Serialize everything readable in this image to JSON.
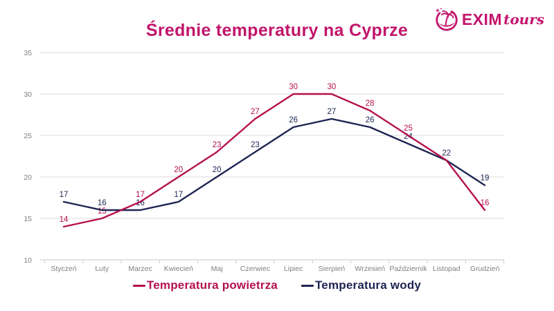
{
  "logo": {
    "brand": "EXIM",
    "suffix": "tours",
    "color": "#C4156D",
    "icon": "palm-island-icon"
  },
  "chart_data": {
    "type": "line",
    "title": "Średnie temperatury na Cyprze",
    "title_color": "#C2156B",
    "categories": [
      "Styczeń",
      "Luty",
      "Marzec",
      "Kwiecień",
      "Maj",
      "Czerwiec",
      "Lipiec",
      "Sierpień",
      "Wrzesień",
      "Październik",
      "Listopad",
      "Grudzień"
    ],
    "series": [
      {
        "name": "Temperatura powietrza",
        "color": "#B5104E",
        "values": [
          14,
          15,
          17,
          20,
          23,
          27,
          30,
          30,
          28,
          25,
          22,
          16
        ],
        "point_labels": [
          "14",
          "15",
          "17",
          "20",
          "23",
          "27",
          "30",
          "30",
          "28",
          "25",
          "",
          "16"
        ]
      },
      {
        "name": "Temperatura wody",
        "color": "#1D2452",
        "values": [
          17,
          16,
          16,
          17,
          20,
          23,
          26,
          27,
          26,
          24,
          22,
          19
        ],
        "point_labels": [
          "17",
          "16",
          "16",
          "17",
          "20",
          "23",
          "26",
          "27",
          "26",
          "24",
          "22",
          "19"
        ]
      }
    ],
    "ylim": [
      10,
      35
    ],
    "yticks": [
      10,
      15,
      20,
      25,
      30,
      35
    ],
    "grid": true,
    "grid_color": "#DBDBDB",
    "axis_color": "#C9C9C9",
    "tick_label_color": "#7F7F7F",
    "legend_position": "bottom"
  }
}
